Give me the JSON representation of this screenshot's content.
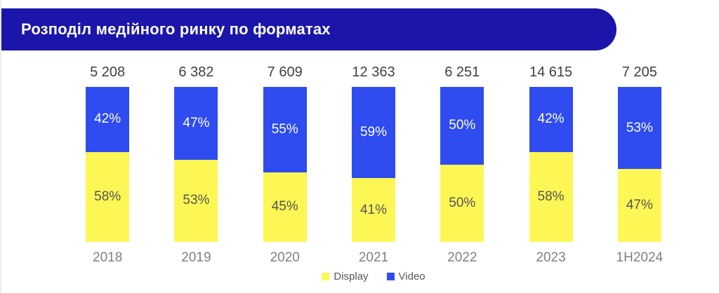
{
  "page": {
    "title": "Розподіл медійного ринку по форматах"
  },
  "colors": {
    "banner": "#1B16A9",
    "display_yellow": "#FCF754",
    "video_blue": "#2E4CF0",
    "total_label": "#404040",
    "display_label_text": "#555555",
    "video_label_text": "#ffffff",
    "axis_label": "#808080",
    "legend_label": "#595959"
  },
  "chart_data": {
    "type": "bar",
    "stacked": true,
    "percent_stacked": true,
    "title": "Розподіл медійного ринку по форматах",
    "categories": [
      "2018",
      "2019",
      "2020",
      "2021",
      "2022",
      "2023",
      "1H2024"
    ],
    "totals": [
      "5 208",
      "6 382",
      "7 609",
      "12 363",
      "6 251",
      "14 615",
      "7 205"
    ],
    "series": [
      {
        "name": "Display",
        "color": "#FCF754",
        "values": [
          58,
          53,
          45,
          41,
          50,
          58,
          47
        ]
      },
      {
        "name": "Video",
        "color": "#2E4CF0",
        "values": [
          42,
          47,
          55,
          59,
          50,
          42,
          53
        ]
      }
    ],
    "value_suffix": "%",
    "ylim": [
      0,
      100
    ],
    "grid": false,
    "legend_position": "bottom"
  },
  "legend": {
    "items": [
      {
        "label": "Display",
        "color": "#FCF754"
      },
      {
        "label": "Video",
        "color": "#2E4CF0"
      }
    ]
  }
}
